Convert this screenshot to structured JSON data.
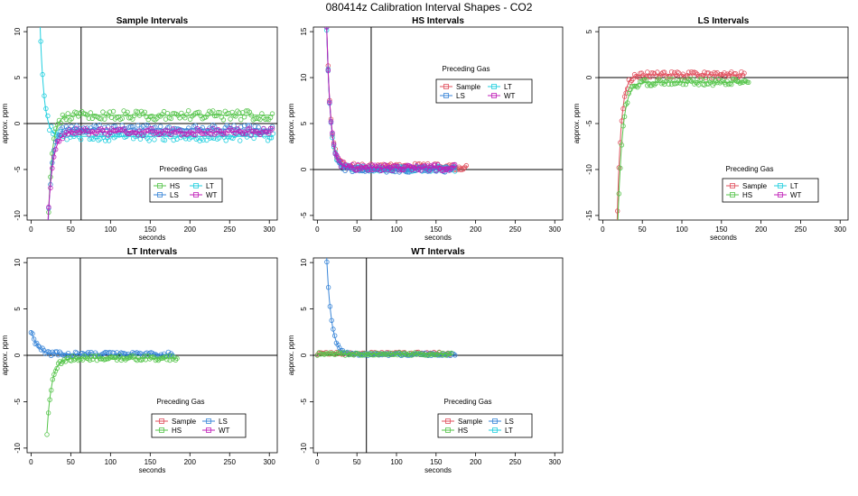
{
  "main_title": "080414z   Calibration Interval Shapes - CO2",
  "colors": {
    "HS": "#55c44a",
    "LS": "#3a86d8",
    "LT": "#22cfdf",
    "WT": "#c020b8",
    "Sample": "#e0505e"
  },
  "chart_data": [
    {
      "type": "scatter",
      "title": "Sample Intervals",
      "xlabel": "seconds",
      "ylabel": "approx. ppm",
      "xlim": [
        -5,
        310
      ],
      "ylim": [
        -10.5,
        10.5
      ],
      "xticks": [
        0,
        50,
        100,
        150,
        200,
        250,
        300
      ],
      "yticks": [
        -10,
        -5,
        0,
        5,
        10
      ],
      "vline": 63,
      "hline": 0,
      "legend": {
        "title": "Preceding Gas",
        "entries": [
          "HS",
          "LT",
          "LS",
          "WT"
        ]
      },
      "series": [
        {
          "name": "LT",
          "start": 10,
          "end": 305,
          "step": 2.2,
          "amp": 16,
          "tau": 5,
          "level": -1.4,
          "noise": 0.5
        },
        {
          "name": "HS",
          "start": 20,
          "end": 305,
          "step": 2.2,
          "amp": -16,
          "tau": 5,
          "level": 0.9,
          "noise": 0.5
        },
        {
          "name": "LS",
          "start": 20,
          "end": 305,
          "step": 2.2,
          "amp": -14,
          "tau": 5,
          "level": -0.6,
          "noise": 0.45
        },
        {
          "name": "WT",
          "start": 20,
          "end": 305,
          "step": 2.2,
          "amp": -12,
          "tau": 6,
          "level": -0.9,
          "noise": 0.4
        }
      ]
    },
    {
      "type": "scatter",
      "title": "HS Intervals",
      "xlabel": "seconds",
      "ylabel": "approx. ppm",
      "xlim": [
        -5,
        310
      ],
      "ylim": [
        -5.5,
        15.5
      ],
      "xticks": [
        0,
        50,
        100,
        150,
        200,
        250,
        300
      ],
      "yticks": [
        -5,
        0,
        5,
        10,
        15
      ],
      "vline": 68,
      "hline": 0,
      "legend": {
        "title": "Preceding Gas",
        "entries": [
          "Sample",
          "LT",
          "LS",
          "WT"
        ]
      },
      "series": [
        {
          "name": "Sample",
          "start": 10,
          "end": 190,
          "step": 1.8,
          "amp": 22,
          "tau": 5,
          "level": 0.3,
          "noise": 0.35
        },
        {
          "name": "LT",
          "start": 10,
          "end": 175,
          "step": 1.8,
          "amp": 22,
          "tau": 5,
          "level": 0.1,
          "noise": 0.3
        },
        {
          "name": "LS",
          "start": 10,
          "end": 175,
          "step": 1.8,
          "amp": 22,
          "tau": 5,
          "level": 0.0,
          "noise": 0.3
        },
        {
          "name": "WT",
          "start": 10,
          "end": 175,
          "step": 1.8,
          "amp": 22,
          "tau": 5,
          "level": 0.2,
          "noise": 0.35
        }
      ]
    },
    {
      "type": "scatter",
      "title": "LS Intervals",
      "xlabel": "seconds",
      "ylabel": "approx. ppm",
      "xlim": [
        -5,
        310
      ],
      "ylim": [
        -15.5,
        5.5
      ],
      "xticks": [
        0,
        50,
        100,
        150,
        200,
        250,
        300
      ],
      "yticks": [
        -15,
        -10,
        -5,
        0,
        5
      ],
      "vline": null,
      "hline": 0,
      "legend": {
        "title": "Preceding Gas",
        "entries": [
          "Sample",
          "LT",
          "HS",
          "WT"
        ]
      },
      "series": [
        {
          "name": "Sample",
          "start": 15,
          "end": 180,
          "step": 1.8,
          "amp": -30,
          "tau": 5,
          "level": 0.3,
          "noise": 0.35
        },
        {
          "name": "HS",
          "start": 15,
          "end": 185,
          "step": 1.8,
          "amp": -30,
          "tau": 6,
          "level": -0.5,
          "noise": 0.35
        }
      ]
    },
    {
      "type": "scatter",
      "title": "LT Intervals",
      "xlabel": "seconds",
      "ylabel": "approx. ppm",
      "xlim": [
        -5,
        310
      ],
      "ylim": [
        -10.5,
        10.5
      ],
      "xticks": [
        0,
        50,
        100,
        150,
        200,
        250,
        300
      ],
      "yticks": [
        -10,
        -5,
        0,
        5,
        10
      ],
      "vline": 62,
      "hline": 0,
      "legend": {
        "title": "Preceding Gas",
        "entries": [
          "Sample",
          "LS",
          "HS",
          "WT"
        ]
      },
      "series": [
        {
          "name": "LS",
          "start": 0,
          "end": 180,
          "step": 1.8,
          "amp": 2.6,
          "tau": 8,
          "level": 0.1,
          "noise": 0.25
        },
        {
          "name": "HS",
          "start": 20,
          "end": 185,
          "step": 1.8,
          "amp": -8,
          "tau": 6,
          "level": -0.3,
          "noise": 0.25
        }
      ]
    },
    {
      "type": "scatter",
      "title": "WT Intervals",
      "xlabel": "seconds",
      "ylabel": "approx. ppm",
      "xlim": [
        -5,
        310
      ],
      "ylim": [
        -10.5,
        10.5
      ],
      "xticks": [
        0,
        50,
        100,
        150,
        200,
        250,
        300
      ],
      "yticks": [
        -10,
        -5,
        0,
        5,
        10
      ],
      "vline": 62,
      "hline": 0,
      "legend": {
        "title": "Preceding Gas",
        "entries": [
          "Sample",
          "LS",
          "HS",
          "LT"
        ]
      },
      "series": [
        {
          "name": "Sample",
          "start": 0,
          "end": 170,
          "step": 2.2,
          "amp": 0,
          "tau": 5,
          "level": 0.2,
          "noise": 0.15
        },
        {
          "name": "LS",
          "start": 10,
          "end": 175,
          "step": 2,
          "amp": 14,
          "tau": 6,
          "level": 0.1,
          "noise": 0.15
        },
        {
          "name": "HS",
          "start": 0,
          "end": 170,
          "step": 2.2,
          "amp": 0,
          "tau": 5,
          "level": 0.15,
          "noise": 0.15
        }
      ]
    }
  ]
}
